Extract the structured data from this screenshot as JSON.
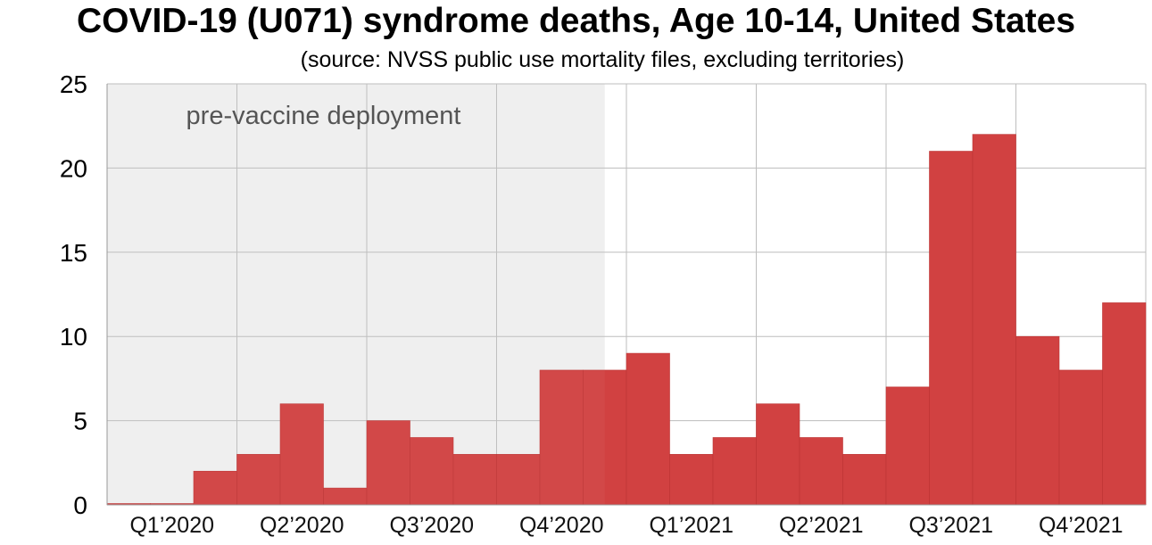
{
  "chart_data": {
    "type": "bar",
    "title": "COVID-19 (U071) syndrome deaths, Age 10-14, United States",
    "subtitle": "(source: NVSS public use mortality files, excluding territories)",
    "xlabel": "",
    "ylabel": "",
    "ylim": [
      0,
      25
    ],
    "yticks": [
      0,
      5,
      10,
      15,
      20,
      25
    ],
    "months": [
      "2020-01",
      "2020-02",
      "2020-03",
      "2020-04",
      "2020-05",
      "2020-06",
      "2020-07",
      "2020-08",
      "2020-09",
      "2020-10",
      "2020-11",
      "2020-12",
      "2021-01",
      "2021-02",
      "2021-03",
      "2021-04",
      "2021-05",
      "2021-06",
      "2021-07",
      "2021-08",
      "2021-09",
      "2021-10",
      "2021-11",
      "2021-12"
    ],
    "values": [
      0,
      0,
      2,
      3,
      6,
      1,
      5,
      4,
      3,
      3,
      8,
      8,
      9,
      3,
      4,
      6,
      4,
      3,
      7,
      21,
      22,
      10,
      8,
      12
    ],
    "quarter_labels": [
      "Q1’2020",
      "Q2’2020",
      "Q3’2020",
      "Q4’2020",
      "Q1’2021",
      "Q2’2021",
      "Q3’2021",
      "Q4’2021"
    ],
    "shaded_region": {
      "label": "pre-vaccine deployment",
      "start": "2020-01",
      "end": "2020-12-15"
    },
    "grid": true,
    "colors": {
      "bar": "#d14141",
      "shade": "#efefef",
      "grid": "#bdbdbd",
      "edge": "#bb3434"
    }
  }
}
